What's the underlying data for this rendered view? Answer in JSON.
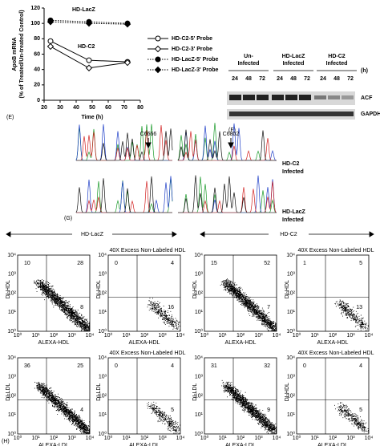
{
  "chart_data": {
    "type": "line",
    "x": [
      24,
      48,
      72
    ],
    "xlim": [
      20,
      80
    ],
    "xticks": [
      20,
      30,
      40,
      50,
      60,
      70,
      80
    ],
    "ylim": [
      0,
      120
    ],
    "yticks": [
      0,
      20,
      40,
      60,
      80,
      100,
      120
    ],
    "xlabel": "Time (h)",
    "ylabel": [
      "ApoB mRNA",
      "(% of Treated/Un-treated Control)"
    ],
    "annotations": [
      "HD-LacZ",
      "HD-C2"
    ],
    "series": [
      {
        "name": "HD-C2-5' Probe",
        "color": "#000000",
        "marker": "open-circle",
        "dash": "solid",
        "values": [
          77,
          52,
          50
        ]
      },
      {
        "name": "HD-C2-3' Probe",
        "color": "#000000",
        "marker": "open-diamond",
        "dash": "solid",
        "values": [
          70,
          42,
          49
        ]
      },
      {
        "name": "HD-LacZ-5' Probe",
        "color": "#000000",
        "marker": "filled-circle",
        "dash": "dotted",
        "values": [
          104,
          102,
          100
        ]
      },
      {
        "name": "HD-LacZ-3' Probe",
        "color": "#000000",
        "marker": "filled-diamond",
        "dash": "dotted",
        "values": [
          102,
          100,
          99
        ]
      }
    ],
    "legend": "right",
    "panel_label": "(E)"
  },
  "blot": {
    "label": "(F)",
    "unit": "(h)",
    "groups": [
      {
        "name": [
          "Un-",
          "Infected"
        ],
        "times": [
          24,
          48,
          72
        ]
      },
      {
        "name": [
          "HD-LacZ",
          "Infected"
        ],
        "times": [
          24,
          48,
          72
        ]
      },
      {
        "name": [
          "HD-C2",
          "Infected"
        ],
        "times": [
          24,
          48,
          72
        ]
      }
    ],
    "bands": [
      "ACF",
      "GAPDH"
    ]
  },
  "sequencing": {
    "label": "(G)",
    "sites": [
      "C6666",
      "C6802"
    ],
    "traces": [
      [
        "HD-C2",
        "Infected"
      ],
      [
        "HD-LacZ",
        "Infected"
      ]
    ]
  },
  "flow": {
    "label": "(H)",
    "groups": [
      "HD-LacZ",
      "HD-C2"
    ],
    "decades": [
      "10⁰",
      "10¹",
      "10²",
      "10³",
      "10⁴"
    ],
    "plots": [
      {
        "ylabel": "DI-HDL",
        "xlabel": "ALEXA-HDL",
        "quadrants": [
          10,
          28,
          8
        ]
      },
      {
        "title": "40X Excess Non-Labeled HDL",
        "ylabel": "DI-HDL",
        "xlabel": "ALEXA-HDL",
        "quadrants": [
          0,
          4,
          16
        ]
      },
      {
        "ylabel": "DI-HDL",
        "xlabel": "ALEXA-HDL",
        "quadrants": [
          15,
          52,
          7
        ]
      },
      {
        "title": "40X Excess Non-Labeled HDL",
        "ylabel": "DI-HDL",
        "xlabel": "ALEXA-HDL",
        "quadrants": [
          1,
          5,
          13
        ]
      },
      {
        "ylabel": "DI-LDL",
        "xlabel": "ALEXA-LDL",
        "quadrants": [
          36,
          25,
          4
        ]
      },
      {
        "title": "40X Excess Non-Labeled HDL",
        "ylabel": "DI-LDL",
        "xlabel": "ALEXA-LDL",
        "quadrants": [
          0,
          4,
          5
        ]
      },
      {
        "ylabel": "DI-LDL",
        "xlabel": "ALEXA-LDL",
        "quadrants": [
          31,
          32,
          9
        ]
      },
      {
        "title": "40X Excess Non-Labeled HDL",
        "ylabel": "DI-HDL",
        "xlabel": "ALEXA-LDL",
        "quadrants": [
          0,
          4,
          5
        ]
      }
    ]
  }
}
